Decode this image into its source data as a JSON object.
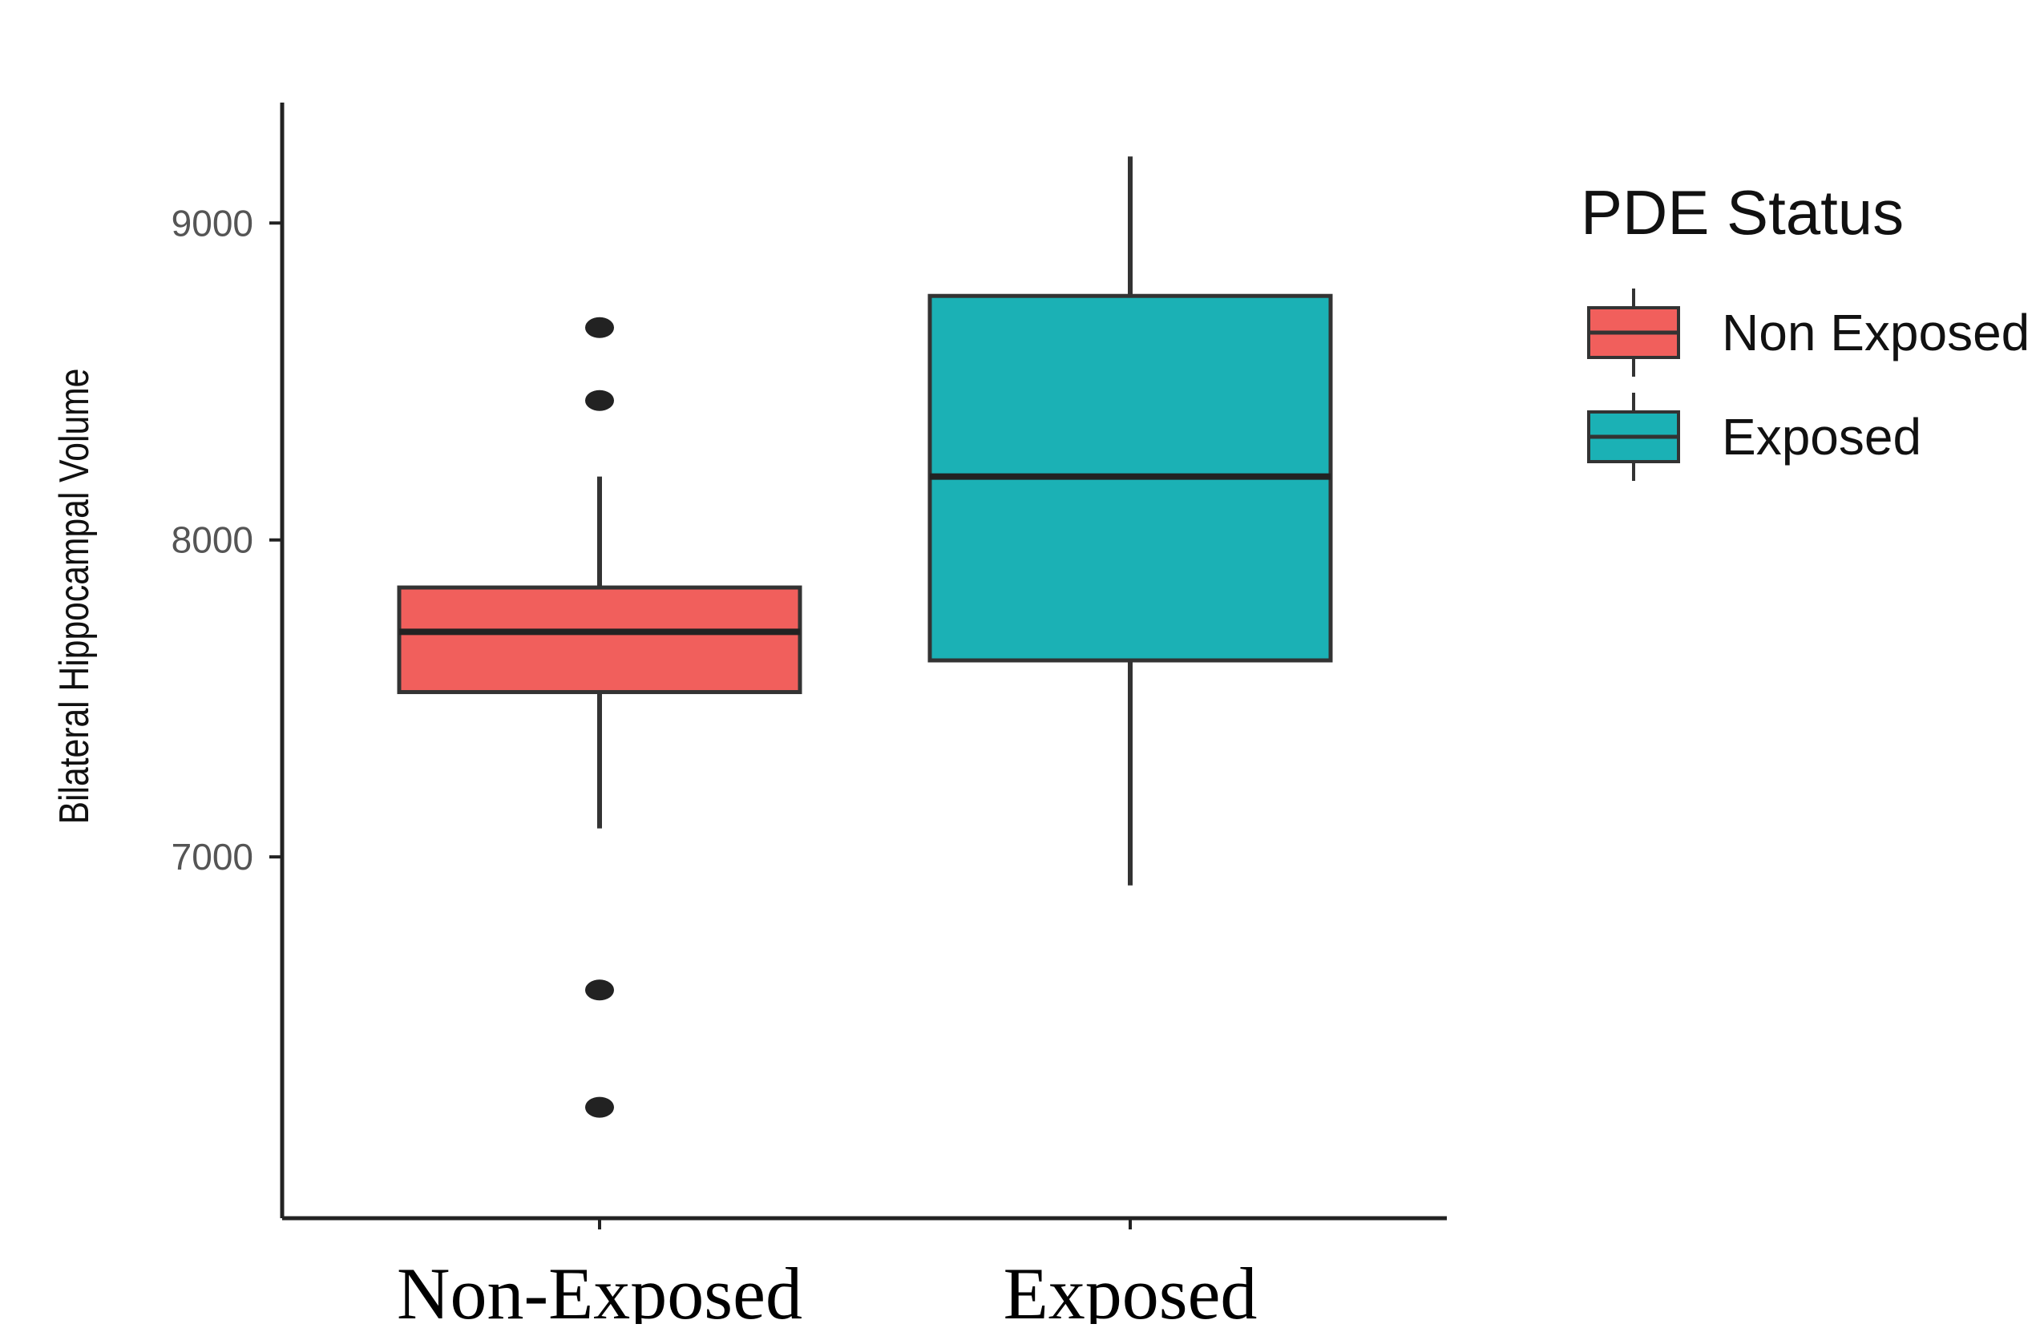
{
  "chart_data": {
    "type": "box",
    "title": "",
    "xlabel": "",
    "ylabel": "Bilateral Hippocampal Volume",
    "ylim": [
      5860,
      9380
    ],
    "yticks": [
      7000,
      8000,
      9000
    ],
    "ytick_labels": [
      "7000",
      "8000",
      "9000"
    ],
    "categories": [
      "Non-Exposed",
      "Exposed"
    ],
    "grid": false,
    "legend": {
      "title": "PDE Status",
      "placement": "right",
      "entries": [
        "Non Exposed",
        "Exposed"
      ]
    },
    "series": [
      {
        "name": "Non Exposed",
        "category": "Non-Exposed",
        "color": "#F15F5C",
        "whisker_low": 7090,
        "q1": 7520,
        "median": 7710,
        "q3": 7850,
        "whisker_high": 8200,
        "outliers": [
          8670,
          8440,
          6580,
          6210
        ]
      },
      {
        "name": "Exposed",
        "category": "Exposed",
        "color": "#1BB1B5",
        "whisker_low": 6910,
        "q1": 7620,
        "median": 8200,
        "q3": 8770,
        "whisker_high": 9210,
        "outliers": []
      }
    ]
  }
}
